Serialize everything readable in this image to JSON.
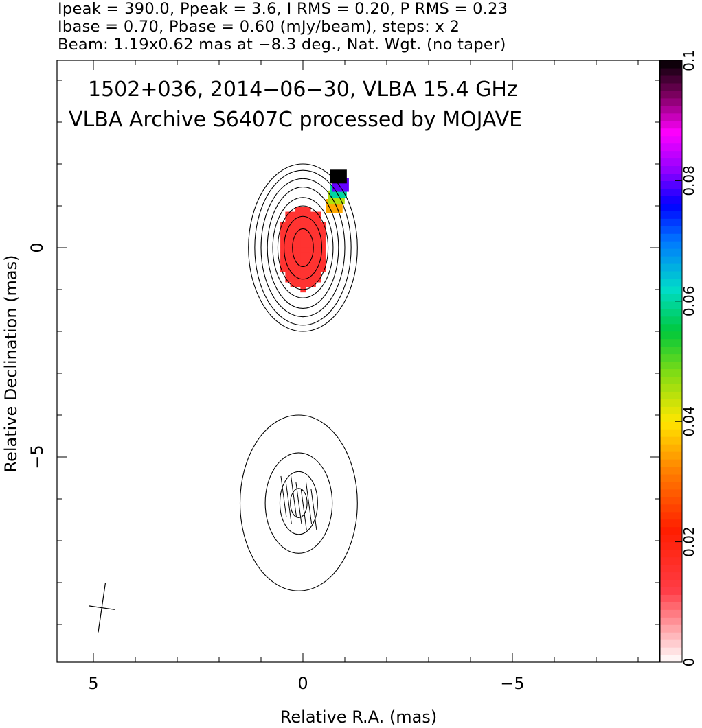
{
  "header": {
    "line1": "Ipeak = 390.0, Ppeak = 3.6, I RMS = 0.20, P RMS = 0.23",
    "line2": "Ibase = 0.70, Pbase = 0.60 (mJy/beam), steps: x 2",
    "line3": "Beam: 1.19x0.62 mas at −8.3 deg., Nat. Wgt. (no taper)"
  },
  "annotation": {
    "line1": "1502+036, 2014−06−30, VLBA 15.4 GHz",
    "line2": "VLBA Archive S6407C processed by MOJAVE"
  },
  "chart_data": {
    "type": "heatmap",
    "title": "1502+036, 2014-06-30, VLBA 15.4 GHz",
    "xlabel": "Relative R.A. (mas)",
    "ylabel": "Relative Declination (mas)",
    "xlim": [
      6,
      -8.5
    ],
    "ylim": [
      -10,
      4.5
    ],
    "x_ticks": [
      5,
      0,
      -5
    ],
    "y_ticks": [
      0,
      -5
    ],
    "x_tick_labels": [
      "5",
      "0",
      "−5"
    ],
    "y_tick_labels": [
      "0",
      "−5"
    ],
    "colorbar": {
      "min": 0,
      "max": 0.1,
      "ticks": [
        0,
        0.02,
        0.04,
        0.06,
        0.08,
        0.1
      ],
      "tick_labels": [
        "0",
        "0.02",
        "0.04",
        "0.06",
        "0.08",
        "0.1"
      ]
    },
    "core_contours": {
      "center": [
        0,
        0
      ],
      "semi_axes_mas": [
        [
          0.25,
          0.45
        ],
        [
          0.45,
          0.75
        ],
        [
          0.6,
          1.0
        ],
        [
          0.72,
          1.2
        ],
        [
          0.85,
          1.45
        ],
        [
          1.0,
          1.65
        ],
        [
          1.15,
          1.85
        ],
        [
          1.3,
          2.0
        ]
      ]
    },
    "jet_component": {
      "center": [
        0.1,
        -6.1
      ],
      "semi_axes_mas": [
        [
          0.2,
          0.35
        ],
        [
          0.45,
          0.75
        ],
        [
          0.8,
          1.2
        ],
        [
          1.4,
          2.1
        ]
      ]
    },
    "polarized_core": {
      "center": [
        0,
        0
      ],
      "semi_axes_mas": [
        0.6,
        1.0
      ],
      "fractional_pol": 0.015
    },
    "polarized_edge": {
      "x": [
        -0.75,
        -0.8,
        -0.85,
        -0.9,
        -0.85
      ],
      "y": [
        1.0,
        1.2,
        1.35,
        1.5,
        1.7
      ],
      "values": [
        0.035,
        0.045,
        0.06,
        0.08,
        0.1
      ]
    },
    "beam": {
      "major_mas": 1.19,
      "minor_mas": 0.62,
      "pa_deg": -8.3,
      "position": [
        4.8,
        -8.6
      ]
    }
  }
}
